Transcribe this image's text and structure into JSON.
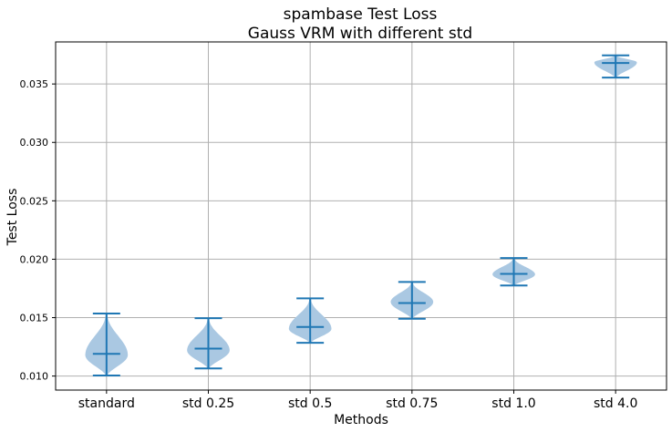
{
  "chart_data": {
    "type": "violin",
    "title": "spambase Test Loss",
    "subtitle": "Gauss VRM with different std",
    "xlabel": "Methods",
    "ylabel": "Test Loss",
    "ylim": [
      0.0088,
      0.0386
    ],
    "yticks": [
      "0.010",
      "0.015",
      "0.020",
      "0.025",
      "0.030",
      "0.035"
    ],
    "yticks_values": [
      0.01,
      0.015,
      0.02,
      0.025,
      0.03,
      0.035
    ],
    "grid": true,
    "colors": {
      "body": "#aac8e2",
      "line": "#1f77b4",
      "grid": "#b0b0b0"
    },
    "categories": [
      "standard",
      "std 0.25",
      "std 0.5",
      "std 0.75",
      "std 1.0",
      "std 4.0"
    ],
    "series": [
      {
        "category": "standard",
        "min": 0.01005,
        "max": 0.01535,
        "median": 0.0119,
        "peak": 0.0118,
        "width": 0.5
      },
      {
        "category": "std 0.25",
        "min": 0.01065,
        "max": 0.01495,
        "median": 0.01235,
        "peak": 0.0122,
        "width": 0.5
      },
      {
        "category": "std 0.5",
        "min": 0.01285,
        "max": 0.01665,
        "median": 0.0142,
        "peak": 0.01405,
        "width": 0.5
      },
      {
        "category": "std 0.75",
        "min": 0.0149,
        "max": 0.01805,
        "median": 0.01625,
        "peak": 0.01635,
        "width": 0.5
      },
      {
        "category": "std 1.0",
        "min": 0.01775,
        "max": 0.0201,
        "median": 0.01875,
        "peak": 0.0187,
        "width": 0.5
      },
      {
        "category": "std 4.0",
        "min": 0.03555,
        "max": 0.03745,
        "median": 0.0368,
        "peak": 0.03685,
        "width": 0.5
      }
    ]
  }
}
